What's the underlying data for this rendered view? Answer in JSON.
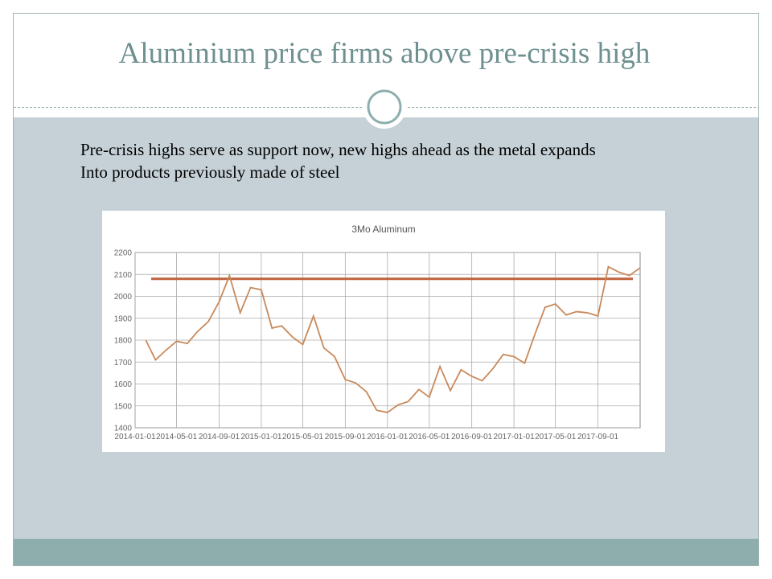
{
  "slide": {
    "title": "Aluminium price firms above pre-crisis high",
    "body": [
      "Pre-crisis highs serve as support now, new highs ahead as the metal expands",
      "Into products previously made of steel"
    ]
  },
  "chart_data": {
    "type": "line",
    "title": "3Mo Aluminum",
    "x": [
      "2014-02-01",
      "2014-03-01",
      "2014-04-01",
      "2014-05-01",
      "2014-06-01",
      "2014-07-01",
      "2014-08-01",
      "2014-09-01",
      "2014-10-01",
      "2014-11-01",
      "2014-12-01",
      "2015-01-01",
      "2015-02-01",
      "2015-03-01",
      "2015-04-01",
      "2015-05-01",
      "2015-06-01",
      "2015-07-01",
      "2015-08-01",
      "2015-09-01",
      "2015-10-01",
      "2015-11-01",
      "2015-12-01",
      "2016-01-01",
      "2016-02-01",
      "2016-03-01",
      "2016-04-01",
      "2016-05-01",
      "2016-06-01",
      "2016-07-01",
      "2016-08-01",
      "2016-09-01",
      "2016-10-01",
      "2016-11-01",
      "2016-12-01",
      "2017-01-01",
      "2017-02-01",
      "2017-03-01",
      "2017-04-01",
      "2017-05-01",
      "2017-06-01",
      "2017-07-01",
      "2017-08-01",
      "2017-09-01",
      "2017-10-01",
      "2017-11-01",
      "2017-12-01",
      "2018-01-01"
    ],
    "series": [
      {
        "color": "#c8895a",
        "values": [
          1800,
          1710,
          1755,
          1795,
          1785,
          1840,
          1885,
          1975,
          2095,
          1925,
          2040,
          2030,
          1855,
          1865,
          1815,
          1780,
          1910,
          1765,
          1725,
          1620,
          1605,
          1565,
          1480,
          1470,
          1505,
          1520,
          1575,
          1540,
          1680,
          1570,
          1665,
          1635,
          1615,
          1670,
          1735,
          1725,
          1695,
          1820,
          1950,
          1965,
          1915,
          1930,
          1925,
          1910,
          2135,
          2110,
          2095,
          2130
        ]
      }
    ],
    "reference_line": {
      "value": 2080,
      "color": "#c0623d"
    },
    "xlim": [
      "2014-01-01",
      "2018-01-01"
    ],
    "xticks": [
      "2014-01-01",
      "2014-05-01",
      "2014-09-01",
      "2015-01-01",
      "2015-05-01",
      "2015-09-01",
      "2016-01-01",
      "2016-05-01",
      "2016-09-01",
      "2017-01-01",
      "2017-05-01",
      "2017-09-01"
    ],
    "ylim": [
      1400,
      2200
    ],
    "yticks": [
      1400,
      1500,
      1600,
      1700,
      1800,
      1900,
      2000,
      2100,
      2200
    ],
    "grid": true
  }
}
